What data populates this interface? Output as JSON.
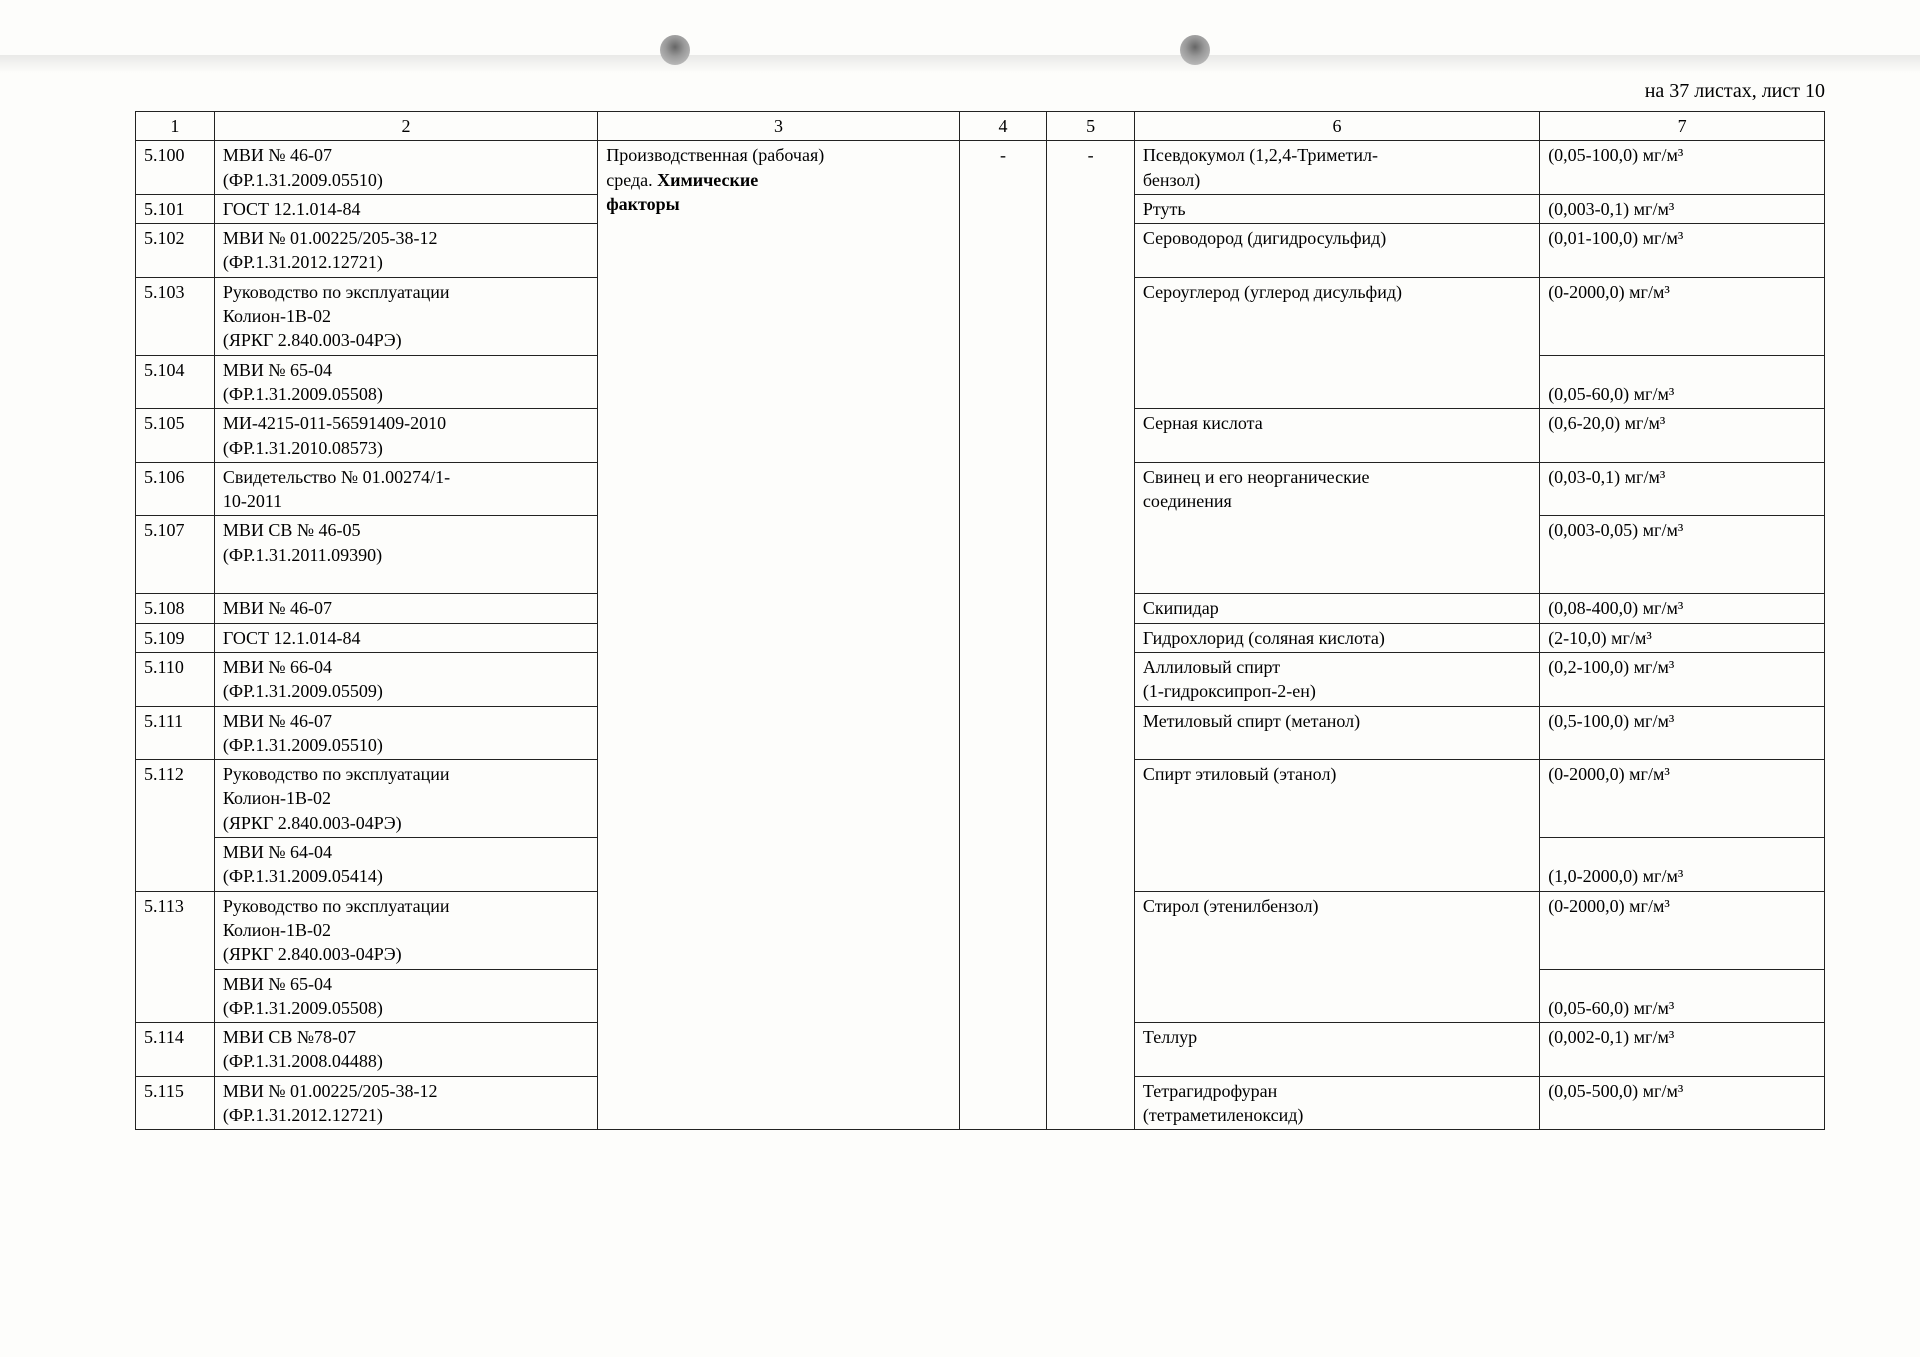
{
  "header": "на 37 листах, лист 10",
  "colHeaders": [
    "1",
    "2",
    "3",
    "4",
    "5",
    "6",
    "7"
  ],
  "col3": {
    "line1": "Производственная (рабочая)",
    "line2a": "среда. ",
    "line2b": "Химические",
    "line3": "факторы"
  },
  "dash": "-",
  "rows": {
    "r100": {
      "id": "5.100",
      "c2a": "МВИ № 46-07",
      "c2b": "(ФР.1.31.2009.05510)",
      "c6a": "Псевдокумол (1,2,4-Триметил-",
      "c6b": "бензол)",
      "c7": "(0,05-100,0) мг/м³"
    },
    "r101": {
      "id": "5.101",
      "c2": "ГОСТ 12.1.014-84",
      "c6": "Ртуть",
      "c7": "(0,003-0,1) мг/м³"
    },
    "r102": {
      "id": "5.102",
      "c2a": "МВИ № 01.00225/205-38-12",
      "c2b": "(ФР.1.31.2012.12721)",
      "c6": "Сероводород (дигидросульфид)",
      "c7": "(0,01-100,0) мг/м³"
    },
    "r103": {
      "id": "5.103",
      "c2a": "Руководство по эксплуатации",
      "c2b": "Колион-1В-02",
      "c2c": "(ЯРКГ 2.840.003-04РЭ)",
      "c6": "Сероуглерод (углерод дисульфид)",
      "c7": "(0-2000,0) мг/м³"
    },
    "r104": {
      "id": "5.104",
      "c2a": "МВИ № 65-04",
      "c2b": "(ФР.1.31.2009.05508)",
      "c7": "(0,05-60,0) мг/м³"
    },
    "r105": {
      "id": "5.105",
      "c2a": "МИ-4215-011-56591409-2010",
      "c2b": "(ФР.1.31.2010.08573)",
      "c6": "Серная кислота",
      "c7": "(0,6-20,0) мг/м³"
    },
    "r106": {
      "id": "5.106",
      "c2a": "Свидетельство № 01.00274/1-",
      "c2b": "10-2011",
      "c6a": "Свинец и его неорганические",
      "c6b": "соединения",
      "c7": "(0,03-0,1) мг/м³"
    },
    "r107": {
      "id": "5.107",
      "c2a": "МВИ СВ № 46-05",
      "c2b": "(ФР.1.31.2011.09390)",
      "c7": "(0,003-0,05) мг/м³"
    },
    "r108": {
      "id": "5.108",
      "c2": "МВИ № 46-07",
      "c6": "Скипидар",
      "c7": "(0,08-400,0) мг/м³"
    },
    "r109": {
      "id": "5.109",
      "c2": "ГОСТ 12.1.014-84",
      "c6": "Гидрохлорид (соляная кислота)",
      "c7": "(2-10,0) мг/м³"
    },
    "r110": {
      "id": "5.110",
      "c2a": "МВИ № 66-04",
      "c2b": "(ФР.1.31.2009.05509)",
      "c6a": "Аллиловый спирт",
      "c6b": "(1-гидроксипроп-2-ен)",
      "c7": "(0,2-100,0) мг/м³"
    },
    "r111": {
      "id": "5.111",
      "c2a": "МВИ № 46-07",
      "c2b": "(ФР.1.31.2009.05510)",
      "c6": "Метиловый спирт (метанол)",
      "c7": "(0,5-100,0) мг/м³"
    },
    "r112": {
      "id": "5.112",
      "c2a": "Руководство по эксплуатации",
      "c2b": "Колион-1В-02",
      "c2c": "(ЯРКГ 2.840.003-04РЭ)",
      "c6": "Спирт этиловый (этанол)",
      "c7": "(0-2000,0) мг/м³"
    },
    "r112b": {
      "c2a": "МВИ № 64-04",
      "c2b": "(ФР.1.31.2009.05414)",
      "c7": "(1,0-2000,0) мг/м³"
    },
    "r113": {
      "id": "5.113",
      "c2a": "Руководство по эксплуатации",
      "c2b": "Колион-1В-02",
      "c2c": "(ЯРКГ 2.840.003-04РЭ)",
      "c6": "Стирол (этенилбензол)",
      "c7": "(0-2000,0) мг/м³"
    },
    "r113b": {
      "c2a": "МВИ № 65-04",
      "c2b": "(ФР.1.31.2009.05508)",
      "c7": "(0,05-60,0) мг/м³"
    },
    "r114": {
      "id": "5.114",
      "c2a": "МВИ СВ №78-07",
      "c2b": "(ФР.1.31.2008.04488)",
      "c6": "Теллур",
      "c7": "(0,002-0,1) мг/м³"
    },
    "r115": {
      "id": "5.115",
      "c2a": "МВИ № 01.00225/205-38-12",
      "c2b": "(ФР.1.31.2012.12721)",
      "c6a": "Тетрагидрофуран",
      "c6b": "(тетраметиленоксид)",
      "c7": "(0,05-500,0) мг/м³"
    }
  }
}
